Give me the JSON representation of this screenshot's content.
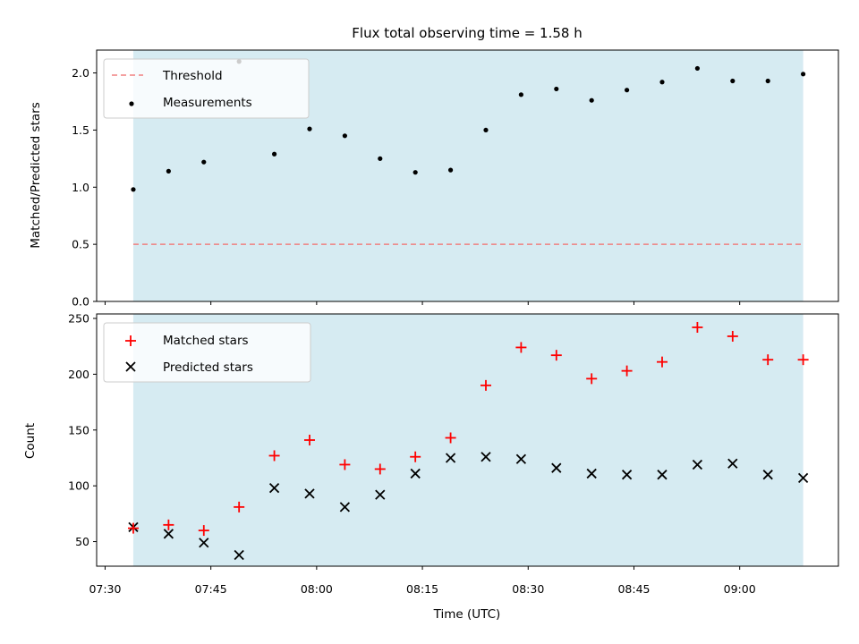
{
  "chart_data": [
    {
      "type": "scatter",
      "title": "Flux total observing time = 1.58 h",
      "xlabel": "",
      "ylabel": "Matched/Predicted stars",
      "ylim": [
        0.0,
        2.2
      ],
      "yticks": [
        "0.0",
        "0.5",
        "1.0",
        "1.5",
        "2.0"
      ],
      "x": [
        "07:34",
        "07:39",
        "07:44",
        "07:49",
        "07:54",
        "07:59",
        "08:04",
        "08:09",
        "08:14",
        "08:19",
        "08:24",
        "08:29",
        "08:34",
        "08:39",
        "08:44",
        "08:49",
        "08:54",
        "08:59",
        "09:04",
        "09:09"
      ],
      "observing_window": [
        "07:34",
        "09:09"
      ],
      "threshold": {
        "name": "Threshold",
        "value": 0.5,
        "color": "#f08080"
      },
      "series": [
        {
          "name": "Measurements",
          "marker": "dot",
          "color": "#000000",
          "values": [
            0.98,
            1.14,
            1.22,
            2.1,
            1.29,
            1.51,
            1.45,
            1.25,
            1.13,
            1.15,
            1.5,
            1.81,
            1.86,
            1.76,
            1.85,
            1.92,
            2.04,
            1.93,
            1.93,
            1.99
          ]
        }
      ],
      "legend": "top-left",
      "grid": false
    },
    {
      "type": "scatter",
      "xlabel": "Time (UTC)",
      "ylabel": "Count",
      "ylim": [
        28,
        254
      ],
      "yticks": [
        "50",
        "100",
        "150",
        "200",
        "250"
      ],
      "xticks": [
        "07:30",
        "07:45",
        "08:00",
        "08:15",
        "08:30",
        "08:45",
        "09:00"
      ],
      "x": [
        "07:34",
        "07:39",
        "07:44",
        "07:49",
        "07:54",
        "07:59",
        "08:04",
        "08:09",
        "08:14",
        "08:19",
        "08:24",
        "08:29",
        "08:34",
        "08:39",
        "08:44",
        "08:49",
        "08:54",
        "08:59",
        "09:04",
        "09:09"
      ],
      "observing_window": [
        "07:34",
        "09:09"
      ],
      "series": [
        {
          "name": "Matched stars",
          "marker": "plus",
          "color": "#ff0000",
          "values": [
            62,
            65,
            60,
            81,
            127,
            141,
            119,
            115,
            126,
            143,
            190,
            224,
            217,
            196,
            203,
            211,
            242,
            234,
            213,
            213
          ]
        },
        {
          "name": "Predicted stars",
          "marker": "x",
          "color": "#000000",
          "values": [
            63,
            57,
            49,
            38,
            98,
            93,
            81,
            92,
            111,
            125,
            126,
            124,
            116,
            111,
            110,
            110,
            119,
            120,
            110,
            107
          ]
        }
      ],
      "legend": "top-left",
      "grid": false
    }
  ]
}
